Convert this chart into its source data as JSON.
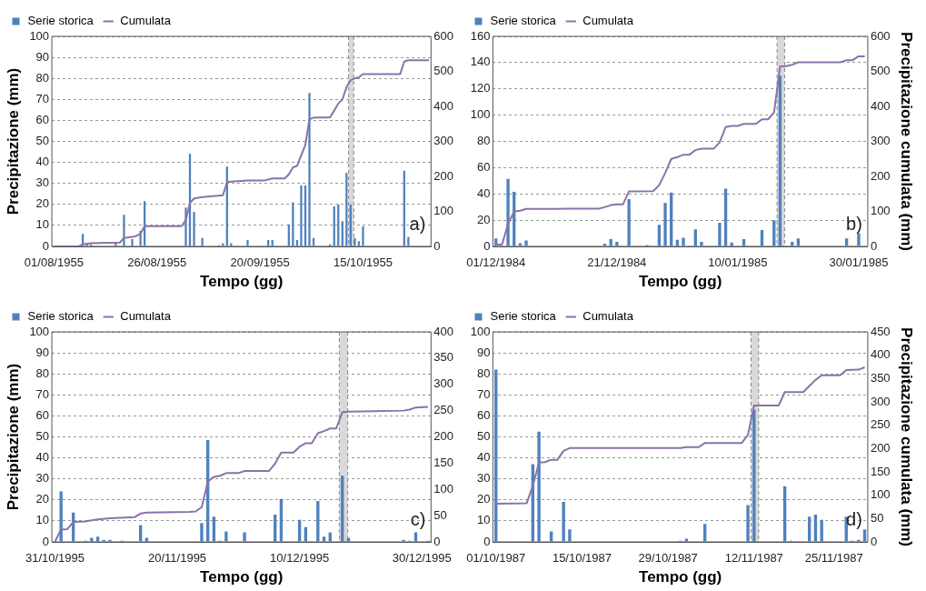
{
  "chart_data": [
    {
      "type": "bar",
      "xlabel": "Tempo (gg)",
      "ylabel": "Precipitazione (mm)",
      "annotations": [
        "a)"
      ],
      "grid": "y",
      "legend": "top left",
      "xlim": [
        "1955-07-31T12:00",
        "1955-10-31T12:00"
      ],
      "xticks": [
        {
          "value": "1955-08-01",
          "label": "01/08/1955"
        },
        {
          "value": "1955-08-26",
          "label": "26/08/1955"
        },
        {
          "value": "1955-09-20",
          "label": "20/09/1955"
        },
        {
          "value": "1955-10-15",
          "label": "15/10/1955"
        }
      ],
      "ylim": [
        0,
        100
      ],
      "yticks": [
        0,
        10,
        20,
        30,
        40,
        50,
        60,
        70,
        80,
        90,
        100
      ],
      "y2lim": [
        0,
        600
      ],
      "y2ticks": [
        0,
        100,
        200,
        300,
        400,
        500,
        600
      ],
      "bands": [
        {
          "axis": "x",
          "from": "1955-10-11T12:00",
          "to": "1955-10-12T18:00",
          "color": "#d9d9d9"
        }
      ],
      "ref_lines": [
        {
          "axis": "x",
          "value": "1955-10-11T12:00",
          "color": "#888888",
          "line_style": "dashed"
        },
        {
          "axis": "x",
          "value": "1955-10-12T18:00",
          "color": "#888888",
          "line_style": "dashed"
        }
      ],
      "series": [
        {
          "name": "Serie storica",
          "type": "bar",
          "color": "#4f81bd",
          "x": [
            "1955-08-08",
            "1955-08-09",
            "1955-08-10",
            "1955-08-16",
            "1955-08-18",
            "1955-08-20",
            "1955-08-22",
            "1955-08-23",
            "1955-09-02",
            "1955-09-03",
            "1955-09-04",
            "1955-09-06",
            "1955-09-10",
            "1955-09-11",
            "1955-09-12",
            "1955-09-13",
            "1955-09-17",
            "1955-09-22",
            "1955-09-23",
            "1955-09-27",
            "1955-09-28",
            "1955-09-29",
            "1955-09-30",
            "1955-10-01",
            "1955-10-02",
            "1955-10-03",
            "1955-10-07",
            "1955-10-08",
            "1955-10-09",
            "1955-10-10",
            "1955-10-11",
            "1955-10-12",
            "1955-10-13",
            "1955-10-14",
            "1955-10-15",
            "1955-10-25",
            "1955-10-26"
          ],
          "values": [
            6,
            1,
            1,
            2,
            15,
            3.5,
            7.5,
            21.5,
            18.5,
            44,
            16.5,
            4,
            0.5,
            1.5,
            38,
            1.5,
            3,
            3,
            3,
            10.5,
            21,
            3,
            29,
            29,
            73,
            4,
            1,
            19,
            20,
            12,
            35,
            20,
            4,
            2.5,
            9.5,
            36,
            4.5
          ]
        },
        {
          "name": "Cumulata",
          "type": "line",
          "axis": "y2",
          "color": "#8a72aa",
          "x": [
            "1955-08-01",
            "1955-08-07",
            "1955-08-08",
            "1955-08-10",
            "1955-08-17",
            "1955-08-18",
            "1955-08-20",
            "1955-08-21",
            "1955-08-22",
            "1955-08-23",
            "1955-09-01",
            "1955-09-02",
            "1955-09-03",
            "1955-09-04",
            "1955-09-06",
            "1955-09-11",
            "1955-09-12",
            "1955-09-13",
            "1955-09-17",
            "1955-09-21",
            "1955-09-23",
            "1955-09-26",
            "1955-09-27",
            "1955-09-28",
            "1955-09-29",
            "1955-09-30",
            "1955-10-01",
            "1955-10-02",
            "1955-10-03",
            "1955-10-06",
            "1955-10-07",
            "1955-10-08",
            "1955-10-09",
            "1955-10-10",
            "1955-10-11",
            "1955-10-12",
            "1955-10-13",
            "1955-10-14",
            "1955-10-15",
            "1955-10-24",
            "1955-10-25",
            "1955-10-26",
            "1955-10-31"
          ],
          "values": [
            0,
            0,
            6,
            9,
            11,
            24,
            27,
            30,
            36,
            58,
            58,
            75,
            124,
            137,
            141,
            146,
            183,
            185,
            188,
            188,
            194,
            194,
            206,
            226,
            230,
            260,
            290,
            363,
            368,
            368,
            369,
            388,
            408,
            420,
            455,
            475,
            480,
            483,
            492,
            492,
            528,
            532,
            532
          ]
        }
      ]
    },
    {
      "type": "bar",
      "xlabel": "Tempo (gg)",
      "y2label": "Precipitazione cumulata (mm)",
      "annotations": [
        "b)"
      ],
      "grid": "y",
      "legend": "top left",
      "xlim": [
        "1984-11-30T12:00",
        "1985-01-31T12:00"
      ],
      "xticks": [
        {
          "value": "1984-12-01",
          "label": "01/12/1984"
        },
        {
          "value": "1984-12-21",
          "label": "21/12/1984"
        },
        {
          "value": "1985-01-10",
          "label": "10/01/1985"
        },
        {
          "value": "1985-01-30",
          "label": "30/01/1985"
        }
      ],
      "ylim": [
        0,
        160
      ],
      "yticks": [
        0,
        20,
        40,
        60,
        80,
        100,
        120,
        140,
        160
      ],
      "y2lim": [
        0,
        600
      ],
      "y2ticks": [
        0,
        100,
        200,
        300,
        400,
        500,
        600
      ],
      "bands": [
        {
          "axis": "x",
          "from": "1985-01-16T12:00",
          "to": "1985-01-17T18:00",
          "color": "#d9d9d9"
        }
      ],
      "ref_lines": [
        {
          "axis": "x",
          "value": "1985-01-16T12:00",
          "color": "#888888",
          "line_style": "dashed"
        },
        {
          "axis": "x",
          "value": "1985-01-17T18:00",
          "color": "#888888",
          "line_style": "dashed"
        }
      ],
      "series": [
        {
          "name": "Serie storica",
          "type": "bar",
          "color": "#4f81bd",
          "x": [
            "1984-12-01",
            "1984-12-03",
            "1984-12-04",
            "1984-12-05",
            "1984-12-06",
            "1984-12-19",
            "1984-12-20",
            "1984-12-21",
            "1984-12-23",
            "1984-12-26",
            "1984-12-28",
            "1984-12-29",
            "1984-12-30",
            "1984-12-31",
            "1985-01-01",
            "1985-01-03",
            "1985-01-04",
            "1985-01-07",
            "1985-01-08",
            "1985-01-09",
            "1985-01-11",
            "1985-01-14",
            "1985-01-16",
            "1985-01-17",
            "1985-01-18",
            "1985-01-19",
            "1985-01-20",
            "1985-01-28",
            "1985-01-30"
          ],
          "values": [
            6,
            51.5,
            41.5,
            2.5,
            4.5,
            2,
            5.5,
            3.5,
            36,
            1,
            16.5,
            33,
            41,
            5,
            6.5,
            13,
            3.5,
            18,
            44,
            3,
            5.5,
            12.5,
            20,
            130,
            0.5,
            3.5,
            6,
            6,
            10
          ]
        },
        {
          "name": "Cumulata",
          "type": "line",
          "axis": "y2",
          "color": "#8a72aa",
          "x": [
            "1984-12-01",
            "1984-12-02",
            "1984-12-03",
            "1984-12-04",
            "1984-12-05",
            "1984-12-06",
            "1984-12-11",
            "1984-12-13",
            "1984-12-18",
            "1984-12-19",
            "1984-12-20",
            "1984-12-21",
            "1984-12-22",
            "1984-12-23",
            "1984-12-27",
            "1984-12-28",
            "1984-12-29",
            "1984-12-30",
            "1984-12-31",
            "1985-01-01",
            "1985-01-02",
            "1985-01-03",
            "1985-01-04",
            "1985-01-06",
            "1985-01-07",
            "1985-01-08",
            "1985-01-09",
            "1985-01-10",
            "1985-01-11",
            "1985-01-13",
            "1985-01-14",
            "1985-01-15",
            "1985-01-16",
            "1985-01-17",
            "1985-01-18",
            "1985-01-19",
            "1985-01-20",
            "1985-01-27",
            "1985-01-28",
            "1985-01-29",
            "1985-01-30",
            "1985-01-31"
          ],
          "values": [
            5,
            5,
            64,
            100,
            102,
            107,
            107,
            108,
            108,
            112,
            118,
            120,
            120,
            157,
            158,
            175,
            210,
            250,
            255,
            262,
            262,
            275,
            279,
            279,
            297,
            341,
            344,
            344,
            350,
            350,
            363,
            363,
            383,
            514,
            515,
            519,
            526,
            526,
            532,
            532,
            543,
            543
          ]
        }
      ]
    },
    {
      "type": "bar",
      "xlabel": "Tempo (gg)",
      "ylabel": "Precipitazione (mm)",
      "annotations": [
        "c)"
      ],
      "grid": "y",
      "legend": "top left",
      "xlim": [
        "1995-10-30T12:00",
        "1995-12-31T12:00"
      ],
      "xticks": [
        {
          "value": "1995-10-31",
          "label": "31/10/1995"
        },
        {
          "value": "1995-11-20",
          "label": "20/11/1995"
        },
        {
          "value": "1995-12-10",
          "label": "10/12/1995"
        },
        {
          "value": "1995-12-30",
          "label": "30/12/1995"
        }
      ],
      "ylim": [
        0,
        100
      ],
      "yticks": [
        0,
        10,
        20,
        30,
        40,
        50,
        60,
        70,
        80,
        90,
        100
      ],
      "y2lim": [
        0,
        400
      ],
      "y2ticks": [
        0,
        50,
        100,
        150,
        200,
        250,
        300,
        350,
        400
      ],
      "bands": [
        {
          "axis": "x",
          "from": "1995-12-16T12:00",
          "to": "1995-12-17T21:00",
          "color": "#d9d9d9"
        }
      ],
      "ref_lines": [
        {
          "axis": "x",
          "value": "1995-12-16T12:00",
          "color": "#888888",
          "line_style": "dashed"
        },
        {
          "axis": "x",
          "value": "1995-12-17T21:00",
          "color": "#888888",
          "line_style": "dashed"
        }
      ],
      "series": [
        {
          "name": "Serie storica",
          "type": "bar",
          "color": "#4f81bd",
          "x": [
            "1995-11-01",
            "1995-11-03",
            "1995-11-05",
            "1995-11-06",
            "1995-11-07",
            "1995-11-08",
            "1995-11-09",
            "1995-11-11",
            "1995-11-14",
            "1995-11-15",
            "1995-11-24",
            "1995-11-25",
            "1995-11-26",
            "1995-11-27",
            "1995-11-28",
            "1995-12-01",
            "1995-12-06",
            "1995-12-07",
            "1995-12-10",
            "1995-12-11",
            "1995-12-13",
            "1995-12-14",
            "1995-12-15",
            "1995-12-17",
            "1995-12-18",
            "1995-12-27",
            "1995-12-28",
            "1995-12-29",
            "1995-12-31"
          ],
          "values": [
            24,
            14,
            0.5,
            2,
            2.5,
            1,
            1,
            0.5,
            8,
            2,
            9,
            48.5,
            12,
            0.5,
            5,
            4.5,
            13,
            20.5,
            10.5,
            7,
            19.5,
            2.5,
            4.5,
            31.5,
            2,
            1,
            0.5,
            4.5,
            0.5
          ]
        },
        {
          "name": "Cumulata",
          "type": "line",
          "axis": "y2",
          "color": "#8a72aa",
          "x": [
            "1995-10-31",
            "1995-11-01",
            "1995-11-02",
            "1995-11-03",
            "1995-11-05",
            "1995-11-06",
            "1995-11-07",
            "1995-11-09",
            "1995-11-13",
            "1995-11-14",
            "1995-11-15",
            "1995-11-22",
            "1995-11-23",
            "1995-11-24",
            "1995-11-25",
            "1995-11-26",
            "1995-11-27",
            "1995-11-28",
            "1995-11-30",
            "1995-12-01",
            "1995-12-05",
            "1995-12-06",
            "1995-12-07",
            "1995-12-09",
            "1995-12-10",
            "1995-12-11",
            "1995-12-12",
            "1995-12-13",
            "1995-12-14",
            "1995-12-15",
            "1995-12-16",
            "1995-12-17",
            "1995-12-18",
            "1995-12-22",
            "1995-12-27",
            "1995-12-28",
            "1995-12-29",
            "1995-12-31"
          ],
          "values": [
            0,
            24,
            24,
            38,
            39,
            41,
            43,
            45,
            47,
            54,
            56,
            57,
            58,
            66,
            115,
            124,
            126,
            131,
            131,
            135,
            135,
            149,
            170,
            170,
            181,
            188,
            188,
            207,
            211,
            216,
            216,
            247,
            248,
            249,
            250,
            252,
            256,
            257
          ]
        }
      ]
    },
    {
      "type": "bar",
      "xlabel": "Tempo (gg)",
      "y2label": "Precipitazione cumulata (mm)",
      "annotations": [
        "d)"
      ],
      "grid": "y",
      "legend": "top left",
      "xlim": [
        "1987-09-30T12:00",
        "1987-11-30T12:00"
      ],
      "xticks": [
        {
          "value": "1987-10-01",
          "label": "01/10/1987"
        },
        {
          "value": "1987-10-15",
          "label": "15/10/1987"
        },
        {
          "value": "1987-10-29",
          "label": "29/10/1987"
        },
        {
          "value": "1987-11-12",
          "label": "12/11/1987"
        },
        {
          "value": "1987-11-25",
          "label": "25/11/1987"
        }
      ],
      "ylim": [
        0,
        100
      ],
      "yticks": [
        0,
        10,
        20,
        30,
        40,
        50,
        60,
        70,
        80,
        90,
        100
      ],
      "y2lim": [
        0,
        450
      ],
      "y2ticks": [
        0,
        50,
        100,
        150,
        200,
        250,
        300,
        350,
        400,
        450
      ],
      "bands": [
        {
          "axis": "x",
          "from": "1987-11-11T12:00",
          "to": "1987-11-12T18:00",
          "color": "#d9d9d9"
        }
      ],
      "ref_lines": [
        {
          "axis": "x",
          "value": "1987-11-11T12:00",
          "color": "#888888",
          "line_style": "dashed"
        },
        {
          "axis": "x",
          "value": "1987-11-12T18:00",
          "color": "#888888",
          "line_style": "dashed"
        }
      ],
      "series": [
        {
          "name": "Serie storica",
          "type": "bar",
          "color": "#4f81bd",
          "x": [
            "1987-10-01",
            "1987-10-07",
            "1987-10-08",
            "1987-10-10",
            "1987-10-12",
            "1987-10-13",
            "1987-10-31",
            "1987-11-01",
            "1987-11-04",
            "1987-11-11",
            "1987-11-12",
            "1987-11-17",
            "1987-11-18",
            "1987-11-21",
            "1987-11-22",
            "1987-11-23",
            "1987-11-27",
            "1987-11-28",
            "1987-11-29",
            "1987-11-30"
          ],
          "values": [
            82,
            37,
            52.5,
            5,
            19,
            6,
            0.5,
            1.5,
            8.5,
            17.5,
            63,
            26.5,
            0.5,
            12,
            13,
            10.5,
            12,
            0.5,
            1,
            6
          ]
        },
        {
          "name": "Cumulata",
          "type": "line",
          "axis": "y2",
          "color": "#8a72aa",
          "x": [
            "1987-10-01",
            "1987-10-06",
            "1987-10-07",
            "1987-10-08",
            "1987-10-09",
            "1987-10-10",
            "1987-10-11",
            "1987-10-12",
            "1987-10-13",
            "1987-10-31",
            "1987-11-01",
            "1987-11-03",
            "1987-11-04",
            "1987-11-10",
            "1987-11-11",
            "1987-11-12",
            "1987-11-16",
            "1987-11-17",
            "1987-11-20",
            "1987-11-21",
            "1987-11-22",
            "1987-11-23",
            "1987-11-26",
            "1987-11-27",
            "1987-11-29",
            "1987-11-30"
          ],
          "values": [
            82,
            83,
            120,
            170,
            171,
            176,
            176,
            195,
            201,
            201,
            203,
            203,
            212,
            212,
            229,
            292,
            292,
            321,
            321,
            334,
            347,
            357,
            357,
            368,
            369,
            374
          ]
        }
      ]
    }
  ]
}
